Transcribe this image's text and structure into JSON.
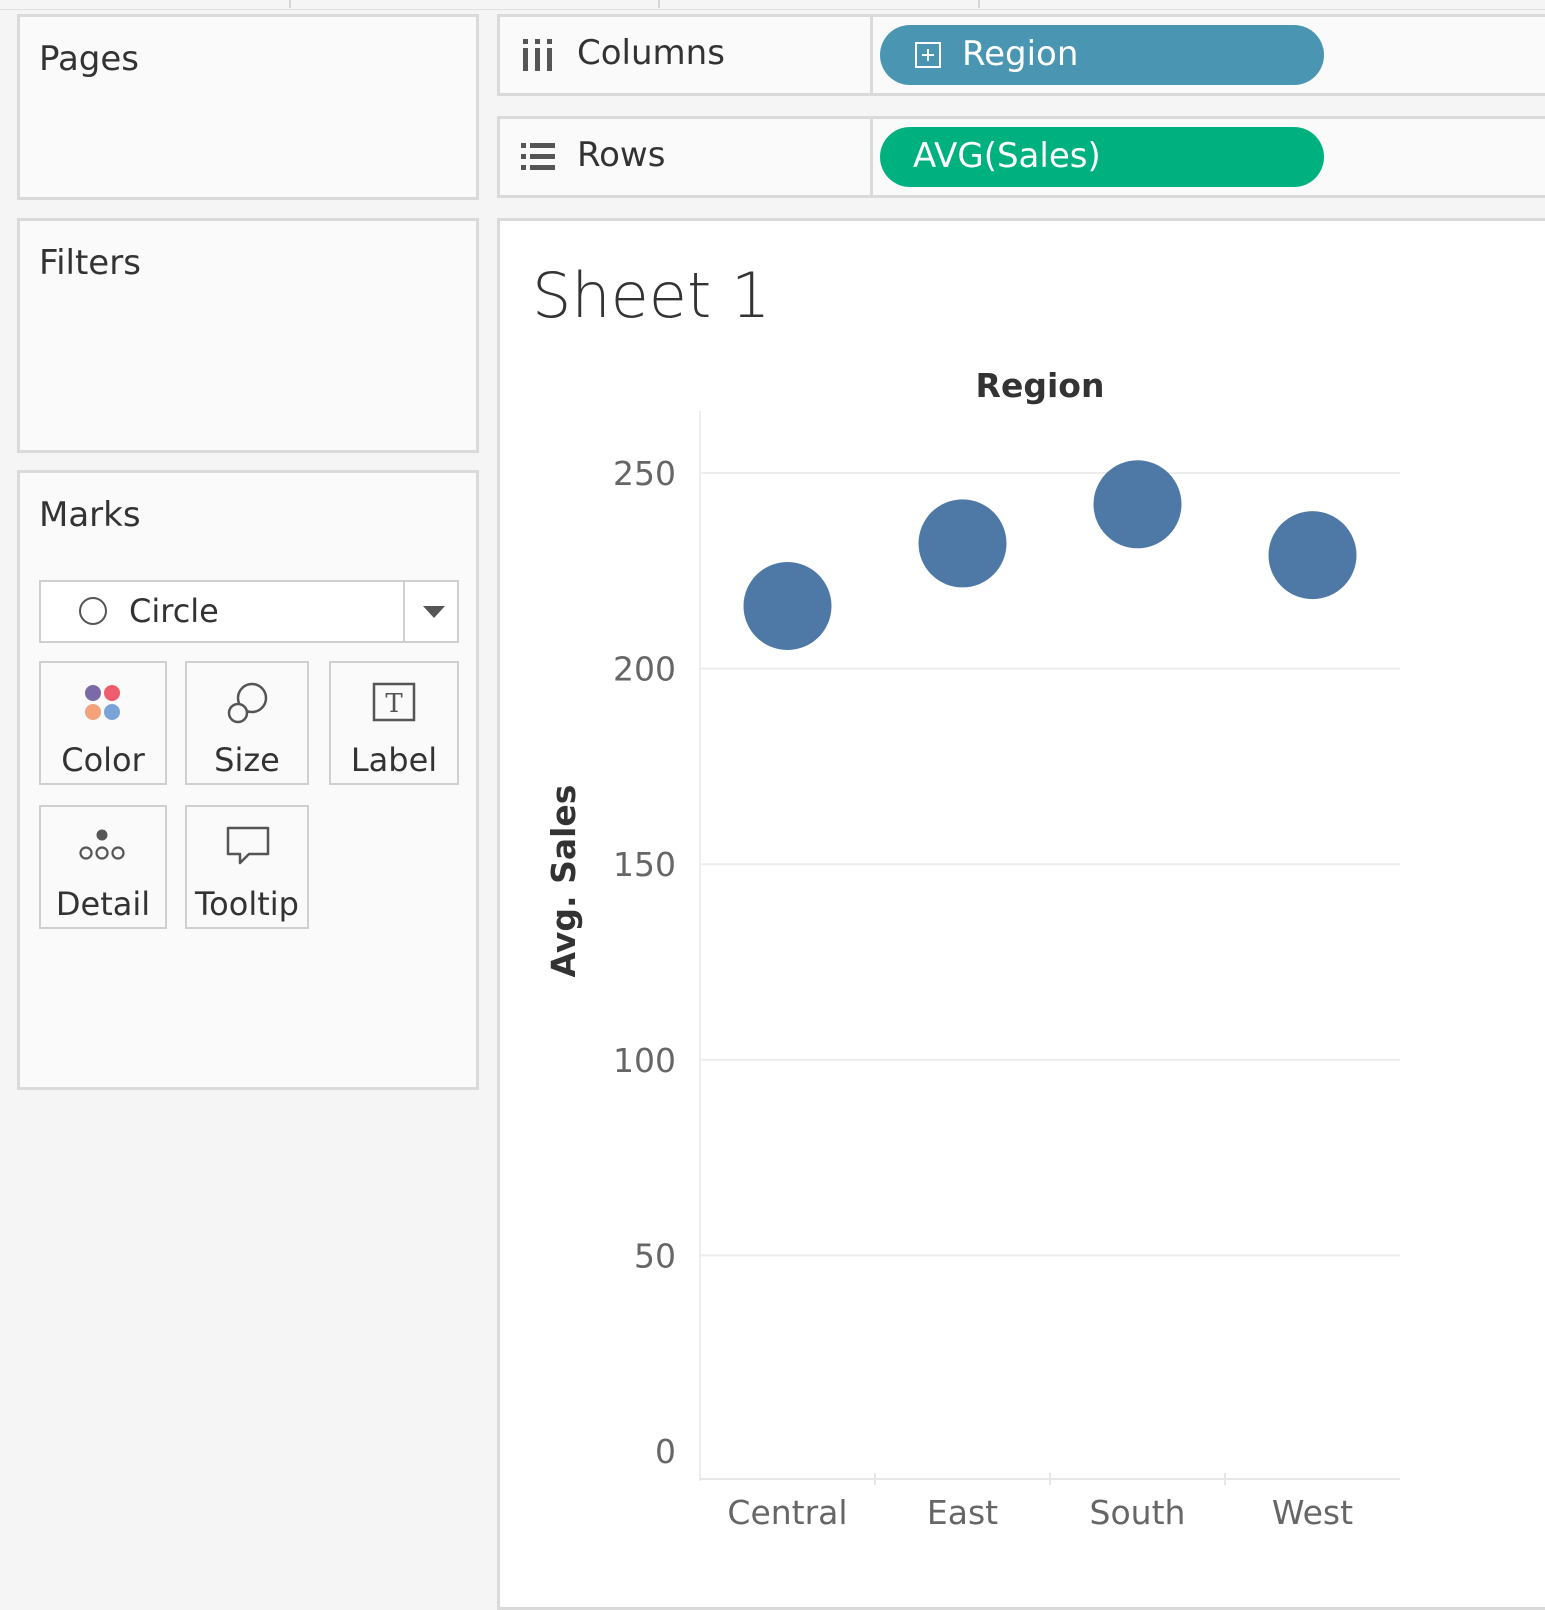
{
  "panels": {
    "pages": {
      "title": "Pages"
    },
    "filters": {
      "title": "Filters"
    },
    "marks": {
      "title": "Marks",
      "mark_type": "Circle",
      "buttons": {
        "color": "Color",
        "size": "Size",
        "label": "Label",
        "detail": "Detail",
        "tooltip": "Tooltip"
      },
      "color_swatches": [
        "#7b6aa8",
        "#ef5c6e",
        "#f2a37a",
        "#7aa3d6"
      ]
    }
  },
  "shelves": {
    "columns": {
      "label": "Columns",
      "pill": "Region",
      "pill_color": "#4a96b2"
    },
    "rows": {
      "label": "Rows",
      "pill": "AVG(Sales)",
      "pill_color": "#00b180"
    }
  },
  "sheet": {
    "title": "Sheet 1"
  },
  "chart_data": {
    "type": "scatter",
    "title": "Region",
    "xlabel": "",
    "ylabel": "Avg. Sales",
    "categories": [
      "Central",
      "East",
      "South",
      "West"
    ],
    "values": [
      216,
      232,
      242,
      229
    ],
    "ylim": [
      0,
      260
    ],
    "yticks": [
      0,
      50,
      100,
      150,
      200,
      250
    ],
    "mark_color": "#4e79a7",
    "grid": true
  }
}
